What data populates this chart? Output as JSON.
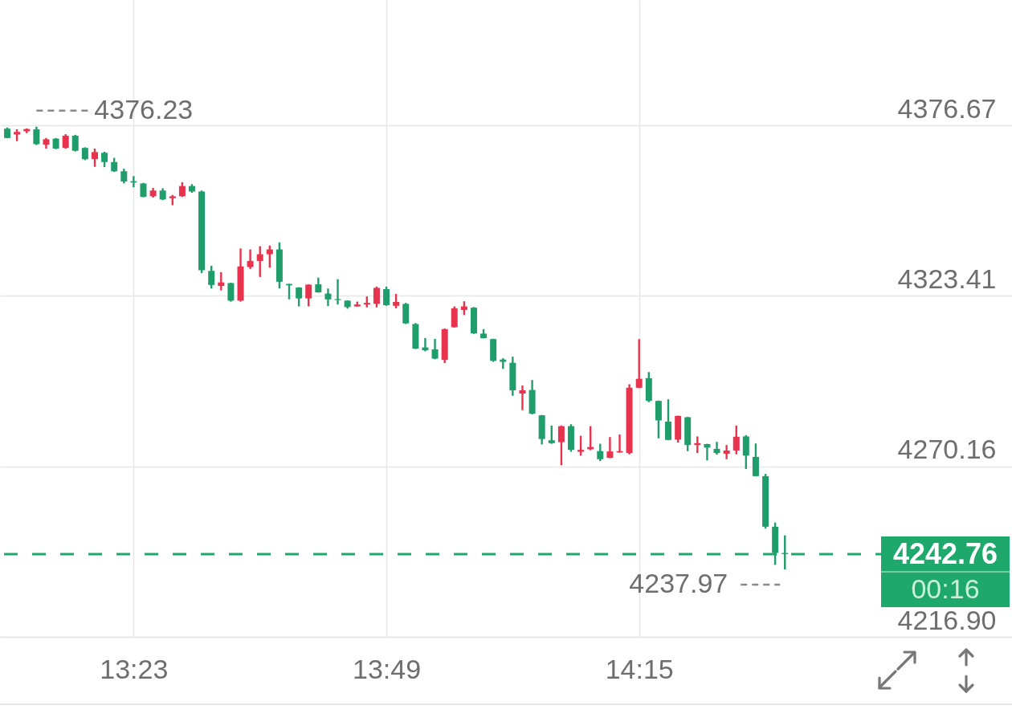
{
  "chart_data": {
    "type": "candlestick",
    "x": [
      13.1667,
      13.1833,
      13.2,
      13.2167,
      13.2333,
      13.25,
      13.2667,
      13.2833,
      13.3,
      13.3167,
      13.3333,
      13.35,
      13.3667,
      13.3833,
      13.4,
      13.4167,
      13.4333,
      13.45,
      13.4667,
      13.4833,
      13.5,
      13.5167,
      13.5333,
      13.55,
      13.5667,
      13.5833,
      13.6,
      13.6167,
      13.6333,
      13.65,
      13.6667,
      13.6833,
      13.7,
      13.7167,
      13.7333,
      13.75,
      13.7667,
      13.7833,
      13.8,
      13.8167,
      13.8333,
      13.85,
      13.8667,
      13.8833,
      13.9,
      13.9167,
      13.9333,
      13.95,
      13.9667,
      13.9833,
      14,
      14.0167,
      14.0333,
      14.05,
      14.0667,
      14.0833,
      14.1,
      14.1167,
      14.1333,
      14.15,
      14.1667,
      14.1833,
      14.2,
      14.2167,
      14.2333,
      14.25,
      14.2667,
      14.2833,
      14.3,
      14.3167,
      14.3333,
      14.35,
      14.3667,
      14.3833,
      14.4,
      14.4167,
      14.4333,
      14.45,
      14.4667,
      14.4833,
      14.5
    ],
    "ohlc": [
      [
        4375.6,
        4376.0,
        4372.6,
        4372.7
      ],
      [
        4373.8,
        4375.4,
        4371.7,
        4374.6
      ],
      [
        4374.8,
        4375.7,
        4374.2,
        4375.5
      ],
      [
        4375.4,
        4376.23,
        4370.5,
        4370.8
      ],
      [
        4370.6,
        4372.7,
        4369.4,
        4372.3
      ],
      [
        4372.5,
        4372.7,
        4369.2,
        4369.4
      ],
      [
        4369.6,
        4373.9,
        4369.4,
        4373.4
      ],
      [
        4373.4,
        4373.7,
        4368.5,
        4368.7
      ],
      [
        4369.6,
        4369.8,
        4365.8,
        4366.1
      ],
      [
        4366.1,
        4369.4,
        4363.7,
        4368.3
      ],
      [
        4368.1,
        4368.4,
        4363.6,
        4365.2
      ],
      [
        4365.2,
        4366.5,
        4362.1,
        4362.3
      ],
      [
        4362.3,
        4363.1,
        4358.5,
        4359.1
      ],
      [
        4359.2,
        4360.8,
        4357.3,
        4358.8
      ],
      [
        4358.5,
        4358.7,
        4354.2,
        4354.3
      ],
      [
        4354.5,
        4357.1,
        4354.1,
        4356.3
      ],
      [
        4356.3,
        4357.0,
        4353.3,
        4353.5
      ],
      [
        4353.9,
        4354.9,
        4351.7,
        4354.5
      ],
      [
        4354.5,
        4358.9,
        4354.3,
        4357.7
      ],
      [
        4357.7,
        4358.3,
        4355.6,
        4356.0
      ],
      [
        4356.0,
        4356.3,
        4330.5,
        4331.4
      ],
      [
        4331.2,
        4332.8,
        4325.7,
        4326.8
      ],
      [
        4326.5,
        4330.8,
        4325.1,
        4327.6
      ],
      [
        4327.4,
        4327.5,
        4321.6,
        4321.9
      ],
      [
        4321.9,
        4338.2,
        4321.6,
        4332.6
      ],
      [
        4332.4,
        4337.9,
        4331.8,
        4334.3
      ],
      [
        4334.3,
        4338.9,
        4329.3,
        4336.4
      ],
      [
        4336.4,
        4339.1,
        4332.2,
        4337.9
      ],
      [
        4337.9,
        4340.1,
        4325.7,
        4327.8
      ],
      [
        4327.1,
        4327.2,
        4322.3,
        4326.7
      ],
      [
        4326.0,
        4326.1,
        4320.1,
        4322.6
      ],
      [
        4322.6,
        4327.0,
        4320.1,
        4326.9
      ],
      [
        4327.0,
        4329.1,
        4324.4,
        4324.5
      ],
      [
        4324.1,
        4325.7,
        4320.2,
        4322.3
      ],
      [
        4322.4,
        4328.6,
        4320.7,
        4322.1
      ],
      [
        4321.9,
        4322.0,
        4319.4,
        4319.9
      ],
      [
        4320.1,
        4321.6,
        4320.0,
        4320.7
      ],
      [
        4320.7,
        4323.2,
        4319.8,
        4321.2
      ],
      [
        4320.9,
        4326.3,
        4319.8,
        4325.9
      ],
      [
        4325.5,
        4326.3,
        4320.3,
        4320.5
      ],
      [
        4320.3,
        4324.0,
        4319.5,
        4321.5
      ],
      [
        4320.9,
        4321.2,
        4314.6,
        4314.8
      ],
      [
        4314.6,
        4314.9,
        4306.8,
        4306.9
      ],
      [
        4307.3,
        4310.2,
        4306.1,
        4306.4
      ],
      [
        4306.7,
        4310.0,
        4303.6,
        4303.8
      ],
      [
        4303.4,
        4313.2,
        4302.4,
        4313.0
      ],
      [
        4313.6,
        4320.1,
        4313.5,
        4319.5
      ],
      [
        4319.0,
        4321.7,
        4317.4,
        4320.1
      ],
      [
        4319.7,
        4319.9,
        4311.5,
        4311.7
      ],
      [
        4311.6,
        4313.0,
        4310.1,
        4310.2
      ],
      [
        4309.9,
        4310.0,
        4302.8,
        4303.1
      ],
      [
        4303.5,
        4303.9,
        4300.6,
        4302.8
      ],
      [
        4302.5,
        4304.4,
        4292.2,
        4293.9
      ],
      [
        4292.9,
        4295.4,
        4287.7,
        4293.9
      ],
      [
        4294.0,
        4297.1,
        4286.4,
        4286.6
      ],
      [
        4286.1,
        4286.2,
        4277.0,
        4278.7
      ],
      [
        4278.3,
        4282.9,
        4277.2,
        4277.4
      ],
      [
        4277.7,
        4282.9,
        4270.5,
        4282.7
      ],
      [
        4282.7,
        4283.3,
        4274.7,
        4275.3
      ],
      [
        4274.7,
        4279.7,
        4273.5,
        4275.3
      ],
      [
        4275.5,
        4282.7,
        4275.2,
        4276.2
      ],
      [
        4274.9,
        4277.2,
        4271.8,
        4272.4
      ],
      [
        4272.8,
        4279.3,
        4272.7,
        4274.8
      ],
      [
        4274.5,
        4280.1,
        4274.4,
        4274.9
      ],
      [
        4274.3,
        4295.8,
        4273.9,
        4294.7
      ],
      [
        4294.7,
        4309.9,
        4294.6,
        4297.5
      ],
      [
        4297.7,
        4299.6,
        4290.2,
        4290.6
      ],
      [
        4290.6,
        4290.7,
        4278.9,
        4284.5
      ],
      [
        4284.1,
        4291.1,
        4278.3,
        4278.4
      ],
      [
        4278.5,
        4286.0,
        4277.6,
        4285.9
      ],
      [
        4285.5,
        4285.6,
        4274.9,
        4276.8
      ],
      [
        4276.8,
        4279.5,
        4274.3,
        4277.4
      ],
      [
        4277.1,
        4277.2,
        4272.0,
        4276.0
      ],
      [
        4275.6,
        4277.8,
        4273.8,
        4274.3
      ],
      [
        4274.1,
        4276.8,
        4272.4,
        4275.1
      ],
      [
        4275.1,
        4282.9,
        4273.9,
        4279.4
      ],
      [
        4279.5,
        4279.9,
        4269.3,
        4273.5
      ],
      [
        4273.1,
        4277.3,
        4267.0,
        4267.1
      ],
      [
        4267.1,
        4267.8,
        4250.7,
        4251.3
      ],
      [
        4251.3,
        4252.6,
        4239.4,
        4243.1
      ],
      [
        4243.1,
        4248.6,
        4237.97,
        4242.76
      ]
    ],
    "colors": [
      "#1f9e6b",
      "#e8334f",
      "#e8334f",
      "#1f9e6b",
      "#e8334f",
      "#1f9e6b",
      "#e8334f",
      "#1f9e6b",
      "#1f9e6b",
      "#e8334f",
      "#1f9e6b",
      "#1f9e6b",
      "#1f9e6b",
      "#1f9e6b",
      "#1f9e6b",
      "#e8334f",
      "#1f9e6b",
      "#e8334f",
      "#e8334f",
      "#1f9e6b",
      "#1f9e6b",
      "#1f9e6b",
      "#e8334f",
      "#1f9e6b",
      "#e8334f",
      "#e8334f",
      "#e8334f",
      "#e8334f",
      "#1f9e6b",
      "#1f9e6b",
      "#1f9e6b",
      "#e8334f",
      "#1f9e6b",
      "#1f9e6b",
      "#1f9e6b",
      "#1f9e6b",
      "#e8334f",
      "#e8334f",
      "#e8334f",
      "#1f9e6b",
      "#e8334f",
      "#1f9e6b",
      "#1f9e6b",
      "#1f9e6b",
      "#1f9e6b",
      "#e8334f",
      "#e8334f",
      "#e8334f",
      "#1f9e6b",
      "#1f9e6b",
      "#1f9e6b",
      "#1f9e6b",
      "#1f9e6b",
      "#e8334f",
      "#1f9e6b",
      "#1f9e6b",
      "#1f9e6b",
      "#e8334f",
      "#1f9e6b",
      "#e8334f",
      "#e8334f",
      "#1f9e6b",
      "#e8334f",
      "#e8334f",
      "#e8334f",
      "#e8334f",
      "#1f9e6b",
      "#1f9e6b",
      "#1f9e6b",
      "#e8334f",
      "#1f9e6b",
      "#e8334f",
      "#1f9e6b",
      "#1f9e6b",
      "#e8334f",
      "#e8334f",
      "#1f9e6b",
      "#1f9e6b",
      "#1f9e6b",
      "#1f9e6b",
      "#1f9e6b"
    ],
    "xlim": [
      13.1611,
      14.8825
    ],
    "xticks": [
      {
        "value": 13.3833,
        "label": "13:23"
      },
      {
        "value": 13.8167,
        "label": "13:49"
      },
      {
        "value": 14.25,
        "label": "14:15"
      }
    ],
    "ylim": [
      4216.9,
      4415.8
    ],
    "yticks": [
      {
        "value": 4216.9,
        "label": "4216.90"
      },
      4270.16,
      4323.41,
      4376.67
    ],
    "grid": true,
    "ref_lines": [
      {
        "axis": "y",
        "value": 4242.76,
        "label": "4242.76",
        "color": "#1ea86b",
        "line_style": "dashed"
      }
    ],
    "annotations": [
      {
        "text": "4376.23",
        "x": 13.2167,
        "y": 4376.23
      },
      {
        "text": "4237.97",
        "x": 14.5,
        "y": 4237.97
      },
      "00:16"
    ]
  }
}
